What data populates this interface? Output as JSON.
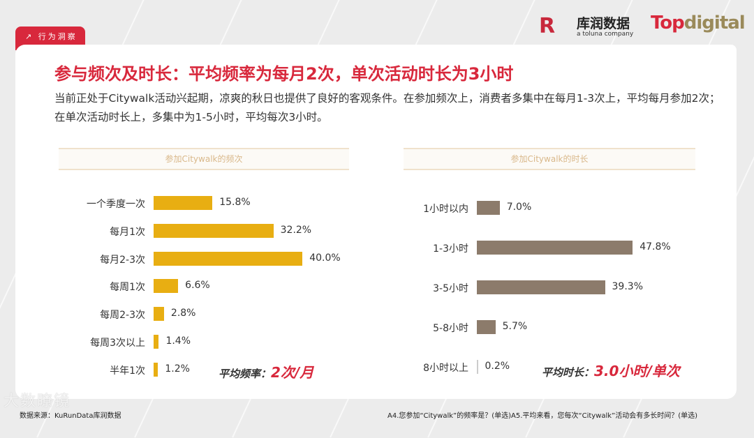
{
  "header": {
    "tag": "行为洞察",
    "logo_kr_mark": "R",
    "logo_kr_cn": "库润数据",
    "logo_kr_en": "a toluna company",
    "logo_td_a": "Top",
    "logo_td_b": "digital"
  },
  "title": "参与频次及时长：平均频率为每月2次，单次活动时长为3小时",
  "description": "当前正处于Citywalk活动兴起期，凉爽的秋日也提供了良好的客观条件。在参加频次上，消费者多集中在每月1-3次上，平均每月参加2次；在单次活动时长上，多集中为1-5小时，平均每次3小时。",
  "colors": {
    "accent": "#d8283c",
    "frequency_bar": "#e8ae12",
    "duration_bar": "#8c7b6b"
  },
  "chart_data": [
    {
      "type": "bar",
      "orientation": "horizontal",
      "title": "参加Citywalk的频次",
      "categories": [
        "一个季度一次",
        "每月1次",
        "每月2-3次",
        "每周1次",
        "每周2-3次",
        "每周3次以上",
        "半年1次"
      ],
      "values": [
        15.8,
        32.2,
        40.0,
        6.6,
        2.8,
        1.4,
        1.2
      ],
      "labels": [
        "15.8%",
        "32.2%",
        "40.0%",
        "6.6%",
        "2.8%",
        "1.4%",
        "1.2%"
      ],
      "unit": "%"
    },
    {
      "type": "bar",
      "orientation": "horizontal",
      "title": "参加Citywalk的时长",
      "categories": [
        "1小时以内",
        "1-3小时",
        "3-5小时",
        "5-8小时",
        "8小时以上"
      ],
      "values": [
        7.0,
        47.8,
        39.3,
        5.7,
        0.2
      ],
      "labels": [
        "7.0%",
        "47.8%",
        "39.3%",
        "5.7%",
        "0.2%"
      ],
      "unit": "%"
    }
  ],
  "avg_freq": {
    "label": "平均频率：",
    "value": "2次/月"
  },
  "avg_dur": {
    "label": "平均时长：",
    "value": "3.0小时/单次"
  },
  "footer": {
    "source": "数据来源：KuRunData库润数据",
    "question": "A4.您参加“Citywalk”的频率是？(单选)A5.平均来看，您每次“Citywalk”活动会有多长时间？(单选)"
  },
  "watermark": "大数瞭镜"
}
